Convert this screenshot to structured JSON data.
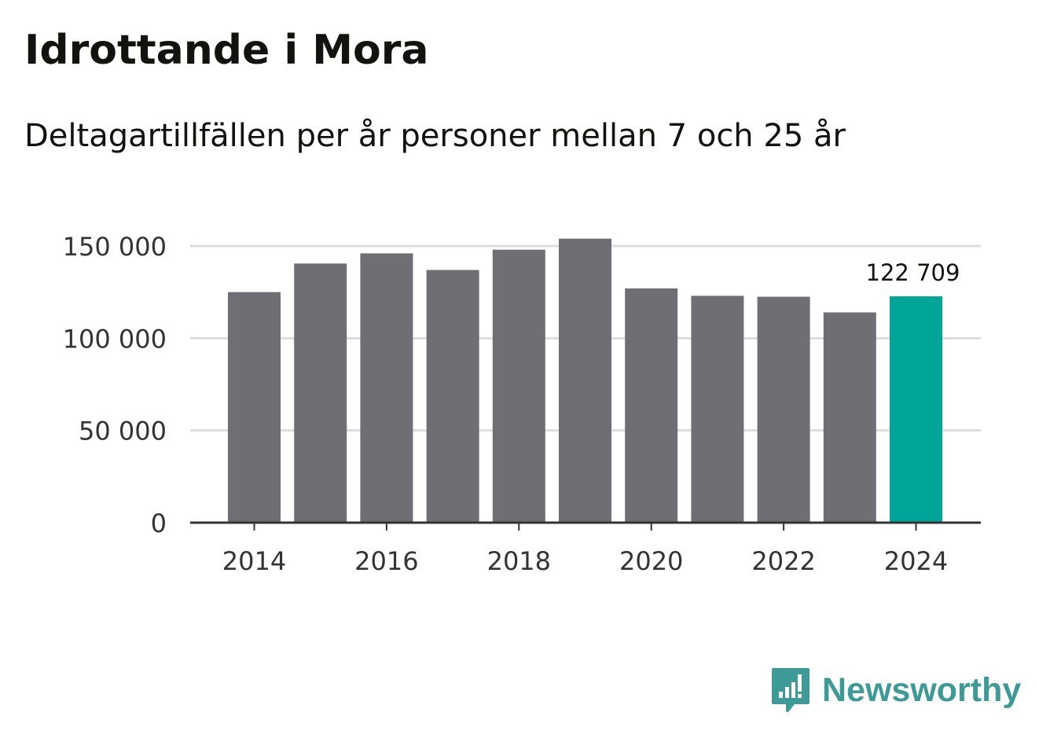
{
  "title": "Idrottande i Mora",
  "subtitle": "Deltagartillfällen per år personer mellan 7 och 25 år",
  "brand": {
    "name": "Newsworthy",
    "icon": "newsworthy-logo-icon",
    "color": "#3d9a96"
  },
  "chart_data": {
    "type": "bar",
    "title": "Idrottande i Mora",
    "subtitle": "Deltagartillfällen per år personer mellan 7 och 25 år",
    "xlabel": "",
    "ylabel": "",
    "categories": [
      "2014",
      "2015",
      "2016",
      "2017",
      "2018",
      "2019",
      "2020",
      "2021",
      "2022",
      "2023",
      "2024"
    ],
    "values": [
      125000,
      140500,
      146000,
      137000,
      148000,
      154000,
      127000,
      123000,
      122500,
      114000,
      122709
    ],
    "ylim": [
      0,
      150000
    ],
    "yticks": [
      0,
      50000,
      100000,
      150000
    ],
    "ytick_labels": [
      "0",
      "50 000",
      "100 000",
      "150 000"
    ],
    "xtick_labels": [
      "2014",
      "2016",
      "2018",
      "2020",
      "2022",
      "2024"
    ],
    "highlight_index": 10,
    "annotation": "122 709",
    "grid": true,
    "colors": {
      "bar": "#6f6e74",
      "highlight": "#00a59a",
      "grid": "#dddddd",
      "axis": "#333333"
    }
  }
}
